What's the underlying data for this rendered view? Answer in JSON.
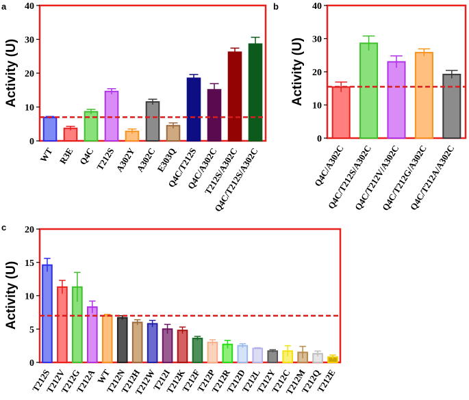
{
  "chart_data": [
    {
      "panel": "a",
      "type": "bar",
      "ylabel": "Activity (U)",
      "ylim": [
        0,
        40
      ],
      "yticks": [
        "0",
        "10",
        "20",
        "30",
        "40"
      ],
      "frame_color": "#e8201e",
      "reference_line": {
        "y": 7.0,
        "style": "dashed",
        "color": "#d91c1c"
      },
      "categories": [
        "WT",
        "R3E",
        "Q4C",
        "T212S",
        "A302Y",
        "A302C",
        "E303Q",
        "Q4C/T212S",
        "Q4C/A302C",
        "T212S/A302C",
        "Q4C/T212S/A302C"
      ],
      "values": [
        6.9,
        3.7,
        8.6,
        14.6,
        2.8,
        11.5,
        4.5,
        18.5,
        15.1,
        26.2,
        28.6
      ],
      "errors": [
        0.3,
        0.6,
        0.7,
        0.8,
        0.7,
        0.8,
        0.8,
        1.1,
        1.8,
        1.2,
        2.0
      ],
      "colors": [
        "#2d2df0",
        "#e8201e",
        "#3cc12a",
        "#b033e8",
        "#f7931e",
        "#3a3a3a",
        "#9c6a3c",
        "#0e0e84",
        "#5a0a4e",
        "#940303",
        "#0c5a1c"
      ],
      "fills": [
        "#7f8af5",
        "#ff7f7f",
        "#8ae07a",
        "#d98cf5",
        "#ffc07f",
        "#8c8c8c",
        "#cfaa80",
        "#0e0e84",
        "#5a0a4e",
        "#940303",
        "#0c5a1c"
      ]
    },
    {
      "panel": "b",
      "type": "bar",
      "ylabel": "Activity (U)",
      "ylim": [
        0,
        40
      ],
      "yticks": [
        "0",
        "10",
        "20",
        "30",
        "40"
      ],
      "frame_color": "#e8201e",
      "reference_line": {
        "y": 15.5,
        "style": "dashed",
        "color": "#d91c1c"
      },
      "categories": [
        "Q4C/A302C",
        "Q4C/T212S/A302C",
        "Q4C/T212V/A302C",
        "Q4C/T212G/A302C",
        "Q4C/T212A/A302C"
      ],
      "values": [
        15.4,
        28.6,
        23.0,
        25.8,
        19.2
      ],
      "errors": [
        1.5,
        2.2,
        1.8,
        1.1,
        1.2
      ],
      "colors": [
        "#e8201e",
        "#3cc12a",
        "#b033e8",
        "#f7931e",
        "#3a3a3a"
      ],
      "fills": [
        "#ff7f7f",
        "#8ae07a",
        "#d98cf5",
        "#ffc07f",
        "#8c8c8c"
      ]
    },
    {
      "panel": "c",
      "type": "bar",
      "ylabel": "Activity (U)",
      "ylim": [
        0,
        20
      ],
      "yticks": [
        "0",
        "5",
        "10",
        "15",
        "20"
      ],
      "frame_color": "#e8201e",
      "reference_line": {
        "y": 7.0,
        "style": "dashed",
        "color": "#d91c1c"
      },
      "categories": [
        "T212S",
        "T212V",
        "T212G",
        "T212A",
        "WT",
        "T212N",
        "T212H",
        "T212W",
        "T212I",
        "T212K",
        "T212F",
        "T212P",
        "T212R",
        "T212D",
        "T212L",
        "T212Y",
        "T212C",
        "T212M",
        "T212Q",
        "T212E"
      ],
      "values": [
        14.6,
        11.3,
        11.3,
        8.3,
        7.0,
        6.7,
        6.0,
        5.8,
        5.0,
        4.8,
        3.6,
        3.0,
        2.7,
        2.5,
        2.1,
        1.7,
        1.7,
        1.5,
        1.3,
        0.8
      ],
      "errors": [
        1.0,
        1.0,
        2.2,
        0.9,
        0.2,
        0.3,
        0.4,
        0.5,
        0.7,
        0.5,
        0.3,
        0.4,
        0.6,
        0.3,
        0.1,
        0.2,
        0.8,
        0.9,
        0.4,
        0.3
      ],
      "colors": [
        "#2d2df0",
        "#e8201e",
        "#3cc12a",
        "#b033e8",
        "#f7931e",
        "#222222",
        "#9c6a3c",
        "#1f1fa8",
        "#6b1560",
        "#a81414",
        "#1a6b2a",
        "#f5b08a",
        "#22dd11",
        "#9ab8ee",
        "#b3b3e8",
        "#555555",
        "#f2e20a",
        "#b8884a",
        "#bdbdbd",
        "#f0d000"
      ],
      "fills": [
        "#7f8af5",
        "#ff7f7f",
        "#8ae07a",
        "#d98cf5",
        "#ffc07f",
        "#555555",
        "#cfaa80",
        "#6b6bcf",
        "#9a5a92",
        "#d46060",
        "#4d8f58",
        "#fad3bd",
        "#8ef07a",
        "#d6e2f7",
        "#dcdcf5",
        "#8c8c8c",
        "#faf07a",
        "#d9bd99",
        "#e6e6e6",
        "#c9a500"
      ]
    }
  ]
}
